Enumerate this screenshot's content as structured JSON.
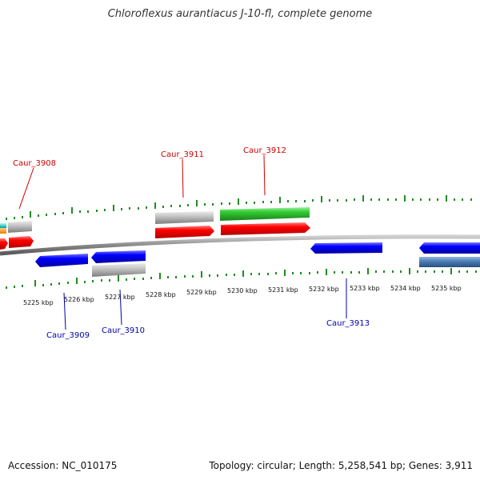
{
  "title": "Chloroflexus aurantiacus J-10-fl, complete genome",
  "footer": {
    "accession": "Accession: NC_010175",
    "summary": "Topology: circular; Length: 5,258,541 bp; Genes: 3,911"
  },
  "ruler_labels": [
    "5225 kbp",
    "5226 kbp",
    "5227 kbp",
    "5228 kbp",
    "5229 kbp",
    "5230 kbp",
    "5231 kbp",
    "5232 kbp",
    "5233 kbp",
    "5234 kbp",
    "5235 kbp"
  ],
  "gene_labels": [
    {
      "text": "Caur_3908",
      "strand": "forward"
    },
    {
      "text": "Caur_3911",
      "strand": "forward"
    },
    {
      "text": "Caur_3912",
      "strand": "forward"
    },
    {
      "text": "Caur_3909",
      "strand": "reverse"
    },
    {
      "text": "Caur_3910",
      "strand": "reverse"
    },
    {
      "text": "Caur_3913",
      "strand": "reverse"
    }
  ],
  "colors": {
    "forward_label": "#cc0000",
    "reverse_label": "#0000aa",
    "ticks": "#228b22",
    "backbone": "#888888",
    "cds": "#ff0000",
    "cds_reverse": "#0000ff",
    "gene": "#c0c0c0",
    "trna": "#33cc33",
    "reverse_extra": "#4f81bd",
    "misc_orange": "#ff9900",
    "misc_cyan": "#00cccc"
  }
}
